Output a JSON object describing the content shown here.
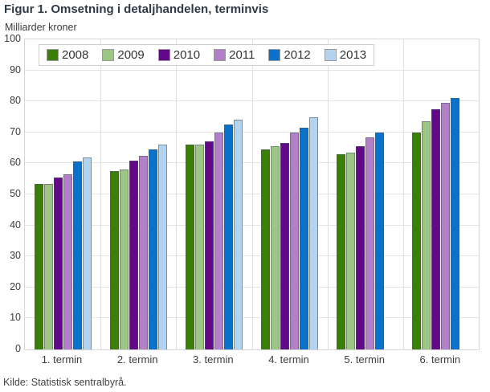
{
  "title": "Figur 1. Omsetning i detaljhandelen, terminvis",
  "source": "Kilde: Statistisk sentralbyrå.",
  "chart_data": {
    "type": "bar",
    "title": "Figur 1. Omsetning i detaljhandelen, terminvis",
    "xlabel": "",
    "ylabel": "Milliarder kroner",
    "ylim": [
      0,
      100
    ],
    "ytick_step": 10,
    "grid": true,
    "legend_position": "top-left-horizontal",
    "categories": [
      "1. termin",
      "2. termin",
      "3. termin",
      "4. termin",
      "5. termin",
      "6. termin"
    ],
    "series": [
      {
        "name": "2008",
        "color": "#3B7F08",
        "values": [
          53.5,
          57.5,
          66,
          64.5,
          63,
          70
        ]
      },
      {
        "name": "2009",
        "color": "#9DC686",
        "values": [
          53.5,
          58,
          66,
          65.5,
          63.5,
          73.5
        ]
      },
      {
        "name": "2010",
        "color": "#62098A",
        "values": [
          55.5,
          61,
          67,
          66.5,
          65.5,
          77.5
        ]
      },
      {
        "name": "2011",
        "color": "#B280C7",
        "values": [
          56.5,
          62.5,
          70,
          70,
          68.5,
          79.5
        ]
      },
      {
        "name": "2012",
        "color": "#0B72CC",
        "values": [
          60.5,
          64.5,
          72.5,
          71.5,
          70,
          81
        ]
      },
      {
        "name": "2013",
        "color": "#B3D3EF",
        "values": [
          62,
          66,
          74,
          75,
          null,
          null
        ]
      }
    ]
  }
}
